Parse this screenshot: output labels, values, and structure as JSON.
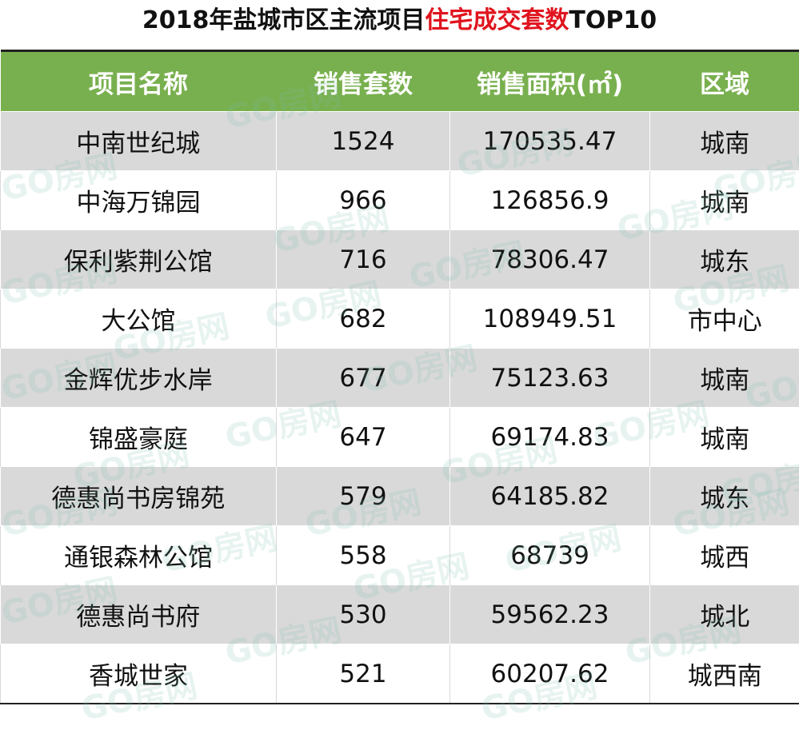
{
  "header": {
    "title_parts": [
      "2018年盐城市区主流项目",
      "住宅成交套数",
      "TOP10"
    ]
  },
  "watermark": "GO房网",
  "table": {
    "columns": [
      "项目名称",
      "销售套数",
      "销售面积(㎡)",
      "区域"
    ],
    "rows": [
      [
        "中南世纪城",
        "1524",
        "170535.47",
        "城南"
      ],
      [
        "中海万锦园",
        "966",
        "126856.9",
        "城南"
      ],
      [
        "保利紫荆公馆",
        "716",
        "78306.47",
        "城东"
      ],
      [
        "大公馆",
        "682",
        "108949.51",
        "市中心"
      ],
      [
        "金辉优步水岸",
        "677",
        "75123.63",
        "城南"
      ],
      [
        "锦盛豪庭",
        "647",
        "69174.83",
        "城南"
      ],
      [
        "德惠尚书房锦苑",
        "579",
        "64185.82",
        "城东"
      ],
      [
        "通银森林公馆",
        "558",
        "68739",
        "城西"
      ],
      [
        "德惠尚书府",
        "530",
        "59562.23",
        "城北"
      ],
      [
        "香城世家",
        "521",
        "60207.62",
        "城西南"
      ]
    ]
  }
}
